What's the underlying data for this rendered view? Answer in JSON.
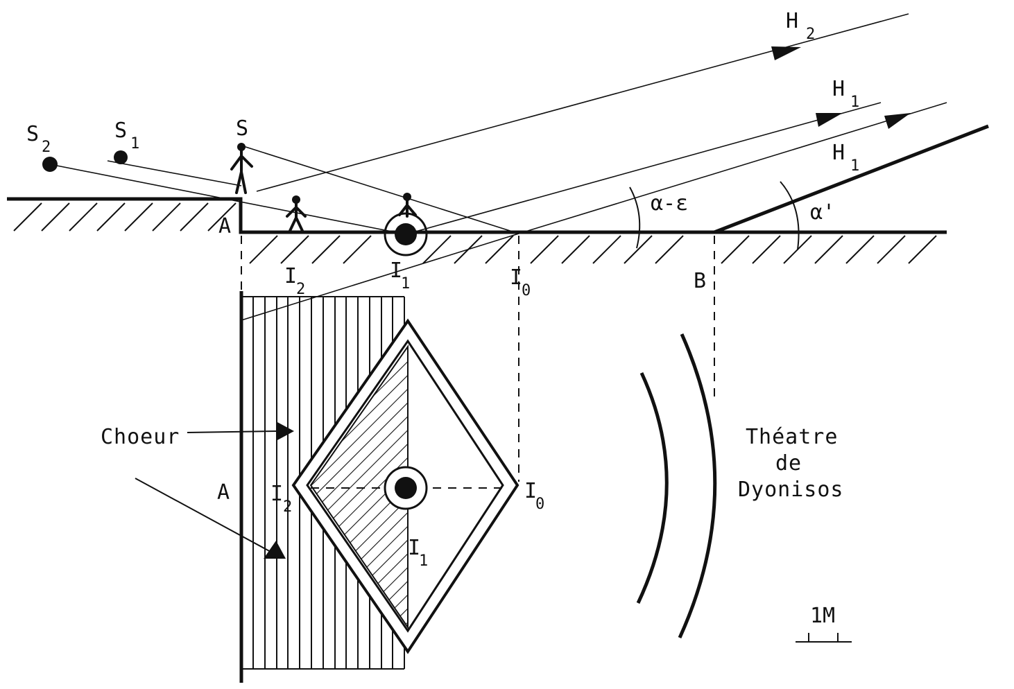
{
  "labels": {
    "S2": "S",
    "S2_sub": "2",
    "S1": "S",
    "S1_sub": "1",
    "S": "S",
    "H2": "H",
    "H2_sub": "2",
    "H1_upper": "H",
    "H1_upper_sub": "1",
    "H1_lower": "H",
    "H1_lower_sub": "1",
    "A_top": "A",
    "A_bottom": "A",
    "B": "B",
    "I2_top": "I",
    "I2_top_sub": "2",
    "I1_top": "I",
    "I1_top_sub": "1",
    "I0_top": "I",
    "I0_top_sub": "0",
    "I2_plan": "I",
    "I2_plan_sub": "2",
    "I1_plan": "I",
    "I1_plan_sub": "1",
    "I0_plan": "I",
    "I0_plan_sub": "0",
    "angle_alpha_eps": "α-ε",
    "angle_alpha_prime": "α'",
    "choeur": "Choeur",
    "theatre_line1": "Théatre",
    "theatre_line2": "de",
    "theatre_line3": "Dyonisos",
    "scale": "1M"
  },
  "colors": {
    "ink": "#111111",
    "paper": "#ffffff"
  }
}
